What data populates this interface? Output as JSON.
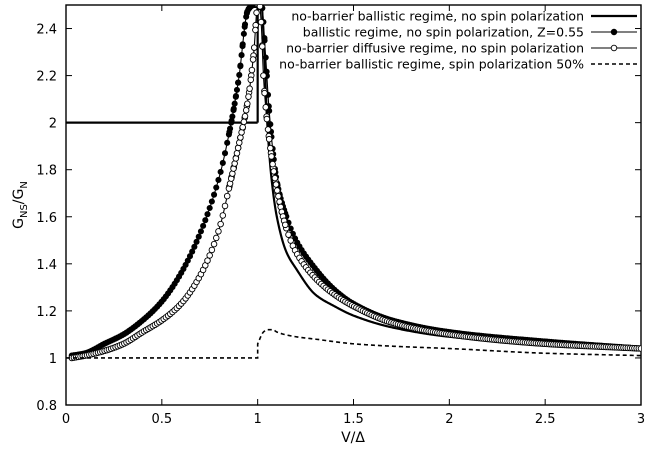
{
  "chart_data": {
    "type": "line",
    "title": "",
    "xlabel": "V/Δ",
    "ylabel": "G_NS/G_N",
    "xlim": [
      0,
      3
    ],
    "ylim": [
      0.8,
      2.5
    ],
    "xticks": [
      0,
      0.5,
      1,
      1.5,
      2,
      2.5,
      3
    ],
    "xtick_labels": [
      "0",
      "0.5",
      "1",
      "1.5",
      "2",
      "2.5",
      "3"
    ],
    "yticks": [
      0.8,
      1,
      1.2,
      1.4,
      1.6,
      1.8,
      2,
      2.2,
      2.4
    ],
    "ytick_labels": [
      "0.8",
      "1",
      "1.2",
      "1.4",
      "1.6",
      "1.8",
      "2",
      "2.2",
      "2.4"
    ],
    "grid": false,
    "legend_position": "top-right",
    "series": [
      {
        "name": "no-barrier ballistic regime, no spin polarization",
        "style": "solid-thick",
        "x": [
          0,
          1,
          1.0001,
          1.005,
          1.01,
          1.02,
          1.03,
          1.05,
          1.07,
          1.1,
          1.15,
          1.2,
          1.3,
          1.4,
          1.5,
          1.7,
          2,
          2.5,
          3
        ],
        "y": [
          2,
          2,
          2.5,
          2.5,
          2.5,
          2.5,
          2.38,
          2.0,
          1.78,
          1.6,
          1.45,
          1.38,
          1.27,
          1.22,
          1.18,
          1.13,
          1.09,
          1.06,
          1.04
        ]
      },
      {
        "name": "ballistic regime, no spin polarization, Z=0.55",
        "style": "filled-circles",
        "x": [
          0.03,
          0.1,
          0.2,
          0.3,
          0.4,
          0.5,
          0.6,
          0.7,
          0.8,
          0.85,
          0.9,
          0.95,
          0.98,
          1.02,
          1.04,
          1.06,
          1.1,
          1.15,
          1.2,
          1.3,
          1.4,
          1.5,
          1.7,
          2,
          2.5,
          3
        ],
        "y": [
          1.01,
          1.02,
          1.06,
          1.1,
          1.16,
          1.24,
          1.36,
          1.53,
          1.77,
          1.95,
          2.18,
          2.48,
          2.5,
          2.5,
          2.3,
          2.05,
          1.75,
          1.6,
          1.5,
          1.38,
          1.29,
          1.23,
          1.16,
          1.11,
          1.07,
          1.04
        ]
      },
      {
        "name": "no-barrier diffusive regime, no spin polarization",
        "style": "open-circles",
        "x": [
          0.03,
          0.1,
          0.2,
          0.3,
          0.4,
          0.5,
          0.6,
          0.7,
          0.8,
          0.85,
          0.9,
          0.95,
          0.98,
          1.0,
          1.01,
          1.02,
          1.03,
          1.05,
          1.1,
          1.15,
          1.2,
          1.3,
          1.4,
          1.5,
          1.7,
          2,
          2.5,
          3
        ],
        "y": [
          1.0,
          1.01,
          1.03,
          1.06,
          1.11,
          1.16,
          1.23,
          1.35,
          1.55,
          1.72,
          1.9,
          2.1,
          2.3,
          2.5,
          2.5,
          2.4,
          2.2,
          2.0,
          1.72,
          1.55,
          1.45,
          1.34,
          1.27,
          1.22,
          1.15,
          1.1,
          1.06,
          1.04
        ]
      },
      {
        "name": "no-barrier ballistic regime, spin polarization 50%",
        "style": "dashed",
        "x": [
          0,
          1,
          1.0001,
          1.03,
          1.05,
          1.08,
          1.1,
          1.2,
          1.3,
          1.5,
          1.7,
          2,
          2.5,
          3
        ],
        "y": [
          1,
          1,
          1.06,
          1.11,
          1.12,
          1.12,
          1.11,
          1.09,
          1.08,
          1.06,
          1.05,
          1.04,
          1.02,
          1.01
        ]
      }
    ]
  }
}
